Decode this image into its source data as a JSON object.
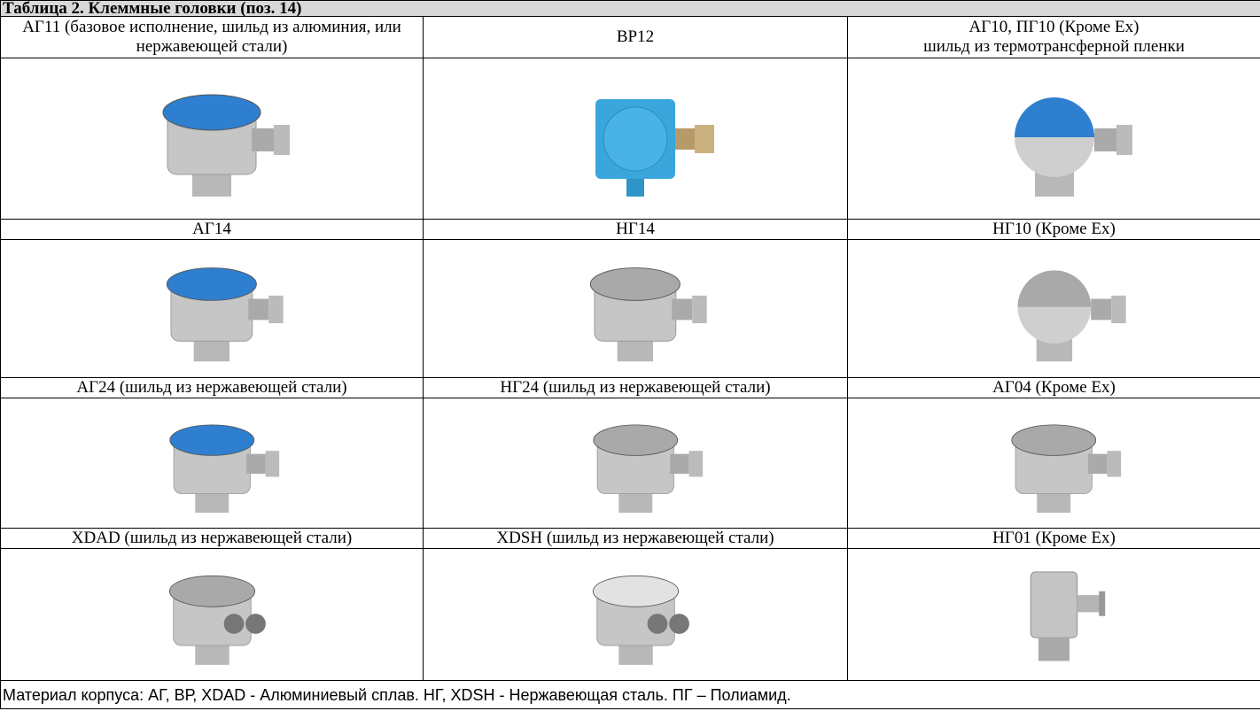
{
  "title": "Таблица 2. Клеммные головки (поз. 14)",
  "rows": [
    [
      "АГ11 (базовое исполнение, шильд из алюминия, или нержавеющей стали)",
      "ВР12",
      "АГ10, ПГ10 (Кроме Ex)\nшильд из термотрансферной пленки"
    ],
    [
      "АГ14",
      "НГ14",
      "НГ10 (Кроме Ex)"
    ],
    [
      "АГ24 (шильд из нержавеющей стали)",
      "НГ24 (шильд из нержавеющей стали)",
      "АГ04 (Кроме Ex)"
    ],
    [
      "XDAD (шильд из нержавеющей стали)",
      "XDSH (шильд из нержавеющей стали)",
      "НГ01 (Кроме Ex)"
    ]
  ],
  "footer": "Материал корпуса: АГ, ВР, XDAD - Алюминиевый сплав. НГ, XDSH - Нержавеющая сталь. ПГ – Полиамид."
}
